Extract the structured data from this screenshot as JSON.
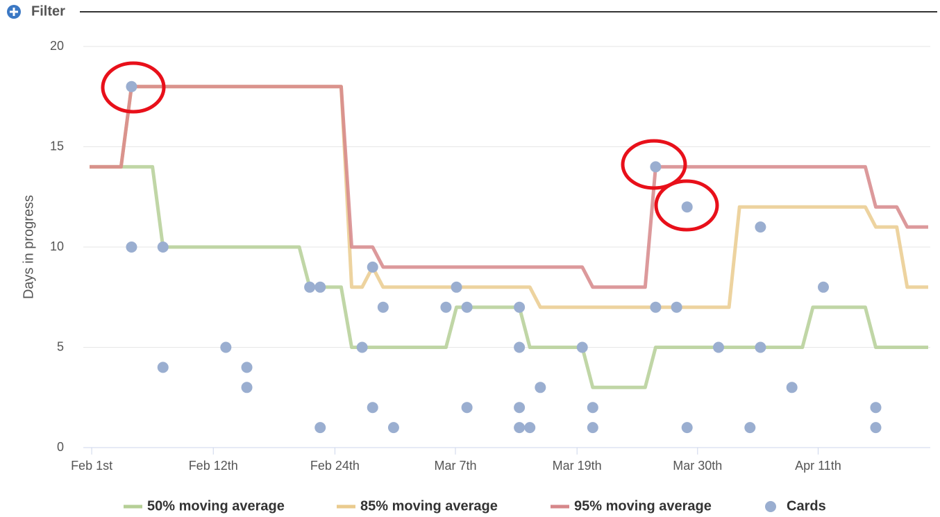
{
  "filter_label": "Filter",
  "chart_data": {
    "type": "line",
    "y_label": "Days in progress",
    "xlim": [
      -0.6,
      80.2
    ],
    "xticks": [
      {
        "value": 0.2,
        "label": "Feb 1st"
      },
      {
        "value": 11.8,
        "label": "Feb 12th"
      },
      {
        "value": 23.4,
        "label": "Feb 24th"
      },
      {
        "value": 34.9,
        "label": "Mar 7th"
      },
      {
        "value": 46.5,
        "label": "Mar 19th"
      },
      {
        "value": 58.0,
        "label": "Mar 30th"
      },
      {
        "value": 69.5,
        "label": "Apr 11th"
      }
    ],
    "ylim": [
      0,
      20
    ],
    "yticks": [
      0,
      5,
      10,
      15,
      20
    ],
    "grid": true,
    "legend": "bottom",
    "series": [
      {
        "name": "50% moving average",
        "kind": "line",
        "color": "#b5cf96",
        "x": [
          0,
          6,
          7,
          20,
          21,
          24,
          25,
          34,
          35,
          41,
          42,
          47,
          48,
          53,
          54,
          68,
          69,
          74,
          75,
          80
        ],
        "values": [
          14,
          14,
          10,
          10,
          8,
          8,
          5,
          5,
          7,
          7,
          5,
          5,
          3,
          3,
          5,
          5,
          7,
          7,
          5,
          5
        ]
      },
      {
        "name": "85% moving average",
        "kind": "line",
        "color": "#eacb8e",
        "x": [
          0,
          3,
          4,
          24,
          25,
          26,
          27,
          28,
          42,
          43,
          61,
          62,
          74,
          75,
          77,
          78,
          80
        ],
        "values": [
          14,
          14,
          18,
          18,
          8,
          8,
          9,
          8,
          8,
          7,
          7,
          12,
          12,
          11,
          11,
          8,
          8
        ]
      },
      {
        "name": "95% moving average",
        "kind": "line",
        "color": "#d6878a",
        "x": [
          0,
          3,
          4,
          24,
          25,
          27,
          28,
          47,
          48,
          53,
          54,
          74,
          75,
          77,
          78,
          80
        ],
        "values": [
          14,
          14,
          18,
          18,
          10,
          10,
          9,
          9,
          8,
          8,
          14,
          14,
          12,
          12,
          11,
          11
        ]
      },
      {
        "name": "Cards",
        "kind": "scatter",
        "color": "#9aaed0",
        "x": [
          4,
          4,
          7,
          7,
          13,
          15,
          15,
          21,
          22,
          22,
          26,
          27,
          27,
          28,
          29,
          34,
          35,
          36,
          36,
          41,
          41,
          41,
          41,
          42,
          43,
          47,
          48,
          48,
          54,
          54,
          56,
          57,
          57,
          60,
          63,
          64,
          64,
          67,
          70,
          75,
          75
        ],
        "values": [
          18,
          10,
          10,
          4,
          5,
          4,
          3,
          8,
          8,
          1,
          5,
          9,
          2,
          7,
          1,
          7,
          8,
          7,
          2,
          7,
          5,
          2,
          1,
          1,
          3,
          5,
          2,
          1,
          14,
          7,
          7,
          12,
          1,
          5,
          1,
          11,
          5,
          3,
          8,
          2,
          1
        ]
      }
    ]
  }
}
